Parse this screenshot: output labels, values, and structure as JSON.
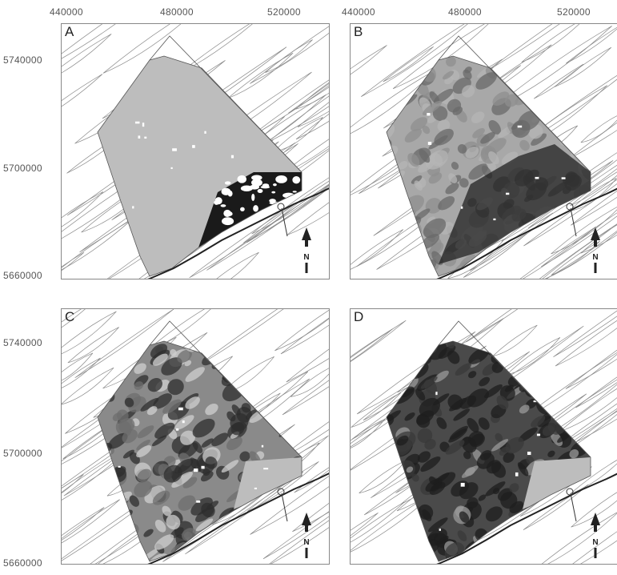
{
  "x_ticks": [
    "440000",
    "480000",
    "520000"
  ],
  "y_ticks": [
    "5740000",
    "5700000",
    "5660000"
  ],
  "panels": [
    {
      "label": "A",
      "fill_style": "a"
    },
    {
      "label": "B",
      "fill_style": "b"
    },
    {
      "label": "C",
      "fill_style": "c"
    },
    {
      "label": "D",
      "fill_style": "d"
    }
  ],
  "north_label": "N",
  "colors": {
    "contour": "#8a8a8a",
    "frame": "#888888",
    "light_fill": "#bdbdbd",
    "dark_fill": "#1a1a1a"
  }
}
